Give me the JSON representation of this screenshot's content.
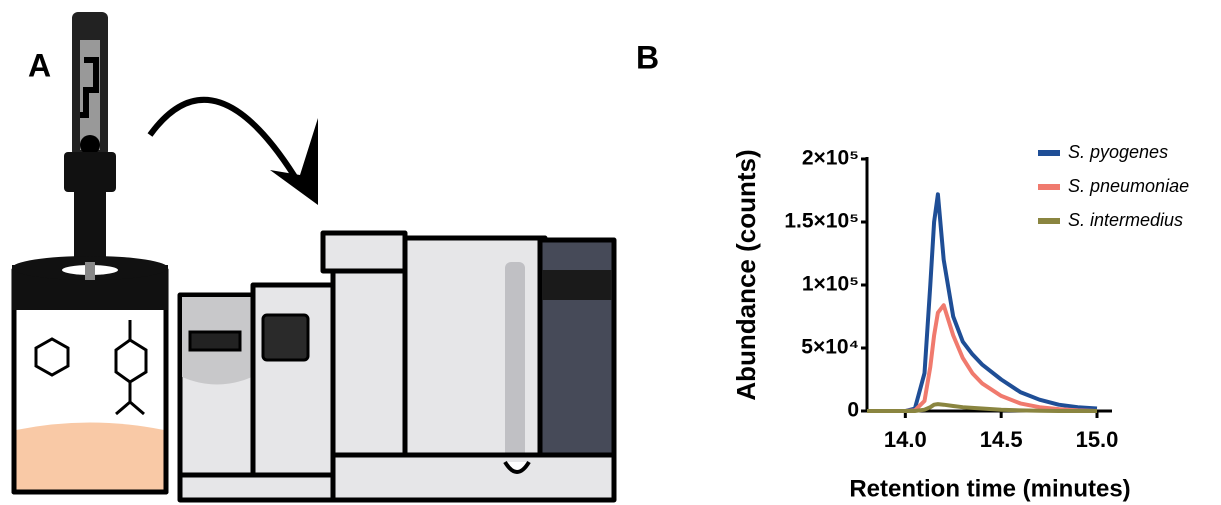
{
  "panel_labels": [
    "A",
    "B"
  ],
  "chart_data": {
    "type": "line",
    "x_label": "Retention time (minutes)",
    "y_label": "Abundance (counts)",
    "x": [
      13.8,
      13.9,
      14.0,
      14.05,
      14.1,
      14.13,
      14.15,
      14.17,
      14.2,
      14.25,
      14.3,
      14.35,
      14.4,
      14.5,
      14.6,
      14.7,
      14.8,
      14.9,
      15.0
    ],
    "series": [
      {
        "name": "S. pyogenes",
        "color": "#1f4e96",
        "values": [
          0,
          0,
          0,
          2000,
          30000,
          100000,
          150000,
          172000,
          120000,
          75000,
          55000,
          45000,
          37000,
          25000,
          15000,
          9000,
          5000,
          3000,
          2000
        ]
      },
      {
        "name": "S. pneumoniae",
        "color": "#f07a6e",
        "values": [
          0,
          0,
          0,
          500,
          8000,
          35000,
          60000,
          78000,
          84000,
          60000,
          42000,
          30000,
          22000,
          12000,
          6000,
          3000,
          1500,
          500,
          0
        ]
      },
      {
        "name": "S. intermedius",
        "color": "#8a8540",
        "values": [
          0,
          0,
          0,
          0,
          1000,
          3000,
          5000,
          5500,
          5000,
          4000,
          3000,
          2500,
          2000,
          1000,
          500,
          200,
          0,
          0,
          0
        ]
      }
    ],
    "xlim": [
      13.8,
      15.0
    ],
    "xticks": [
      {
        "value": 14,
        "label": "14.0"
      },
      14.5,
      {
        "value": 15,
        "label": "15.0"
      }
    ],
    "ylim": [
      0,
      200000
    ],
    "yticks": [
      0,
      {
        "value": 50000,
        "label": "5×10⁴"
      },
      {
        "value": 100000,
        "label": "1×10⁵"
      },
      {
        "value": 150000,
        "label": "1.5×10⁵"
      },
      {
        "value": 200000,
        "label": "2×10⁵"
      }
    ],
    "legend": "upper-right"
  }
}
